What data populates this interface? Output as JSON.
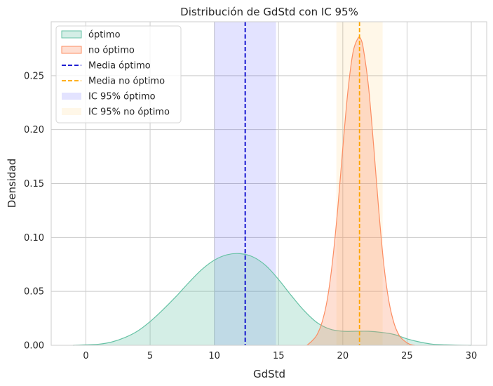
{
  "chart_data": {
    "type": "area",
    "title": "Distribución de GdStd con IC 95%",
    "xlabel": "GdStd",
    "ylabel": "Densidad",
    "xlim": [
      -2.7,
      31.2
    ],
    "ylim": [
      0,
      0.3
    ],
    "xticks": [
      0,
      5,
      10,
      15,
      20,
      25,
      30
    ],
    "yticks": [
      0.0,
      0.05,
      0.1,
      0.15,
      0.2,
      0.25
    ],
    "ytick_labels": [
      "0.00",
      "0.05",
      "0.10",
      "0.15",
      "0.20",
      "0.25"
    ],
    "grid": true,
    "legend_position": "upper-left",
    "series": [
      {
        "name": "óptimo",
        "color": "#66c2a5",
        "x": [
          -1,
          0,
          1,
          2,
          3,
          4,
          5,
          6,
          7,
          8,
          9,
          10,
          11,
          12,
          13,
          14,
          15,
          16,
          17,
          18,
          19,
          20,
          21,
          22,
          23,
          24,
          25,
          26,
          27,
          28,
          29,
          30
        ],
        "y": [
          0.0,
          0.0005,
          0.001,
          0.003,
          0.007,
          0.013,
          0.022,
          0.033,
          0.045,
          0.058,
          0.07,
          0.079,
          0.084,
          0.085,
          0.082,
          0.074,
          0.061,
          0.046,
          0.032,
          0.021,
          0.015,
          0.013,
          0.013,
          0.013,
          0.012,
          0.01,
          0.006,
          0.003,
          0.001,
          0.0005,
          0.0002,
          0.0
        ]
      },
      {
        "name": "no óptimo",
        "color": "#fc8d62",
        "x": [
          17.2,
          17.6,
          18.0,
          18.4,
          18.8,
          19.2,
          19.6,
          20.0,
          20.4,
          20.8,
          21.2,
          21.4,
          21.6,
          22.0,
          22.4,
          22.8,
          23.2,
          23.6,
          24.0,
          24.4,
          24.8,
          25.2,
          25.6
        ],
        "y": [
          0.0,
          0.004,
          0.01,
          0.022,
          0.043,
          0.078,
          0.126,
          0.183,
          0.236,
          0.272,
          0.285,
          0.284,
          0.275,
          0.24,
          0.185,
          0.125,
          0.074,
          0.04,
          0.02,
          0.009,
          0.004,
          0.001,
          0.0
        ]
      }
    ],
    "mean_lines": [
      {
        "name": "Media óptimo",
        "x": 12.4,
        "color": "#0000cc"
      },
      {
        "name": "Media no óptimo",
        "x": 21.3,
        "color": "#ffa500"
      }
    ],
    "ci_bands": [
      {
        "name": "IC 95% óptimo",
        "x_range": [
          10.0,
          14.8
        ],
        "color": "#0000ff"
      },
      {
        "name": "IC 95% no óptimo",
        "x_range": [
          19.5,
          23.1
        ],
        "color": "#ffc04d"
      }
    ],
    "legend": [
      "óptimo",
      "no óptimo",
      "Media óptimo",
      "Media no óptimo",
      "IC 95% óptimo",
      "IC 95% no óptimo"
    ]
  }
}
